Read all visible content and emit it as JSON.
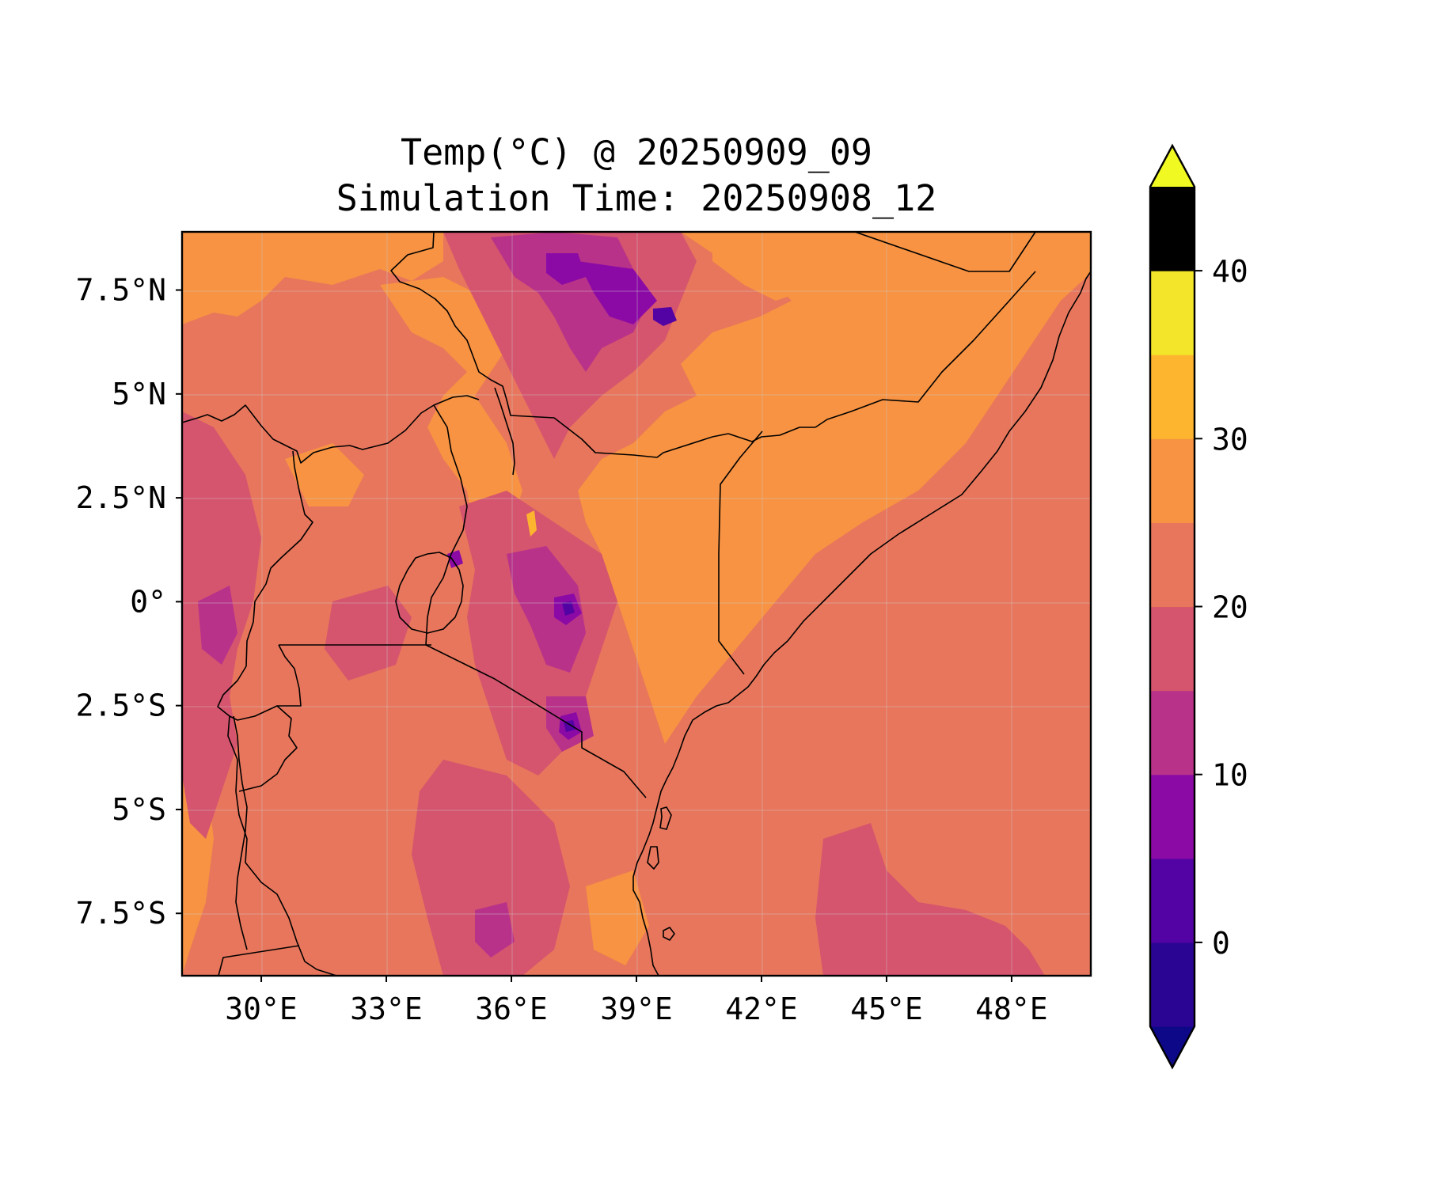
{
  "chart_data": {
    "type": "heatmap",
    "title": "Temp(°C) @ 20250909_09",
    "subtitle": "Simulation Time: 20250908_12",
    "variable": "Temp(°C)",
    "valid_time": "20250909_09",
    "simulation_time": "20250908_12",
    "x_ticks": [
      "30°E",
      "33°E",
      "36°E",
      "39°E",
      "42°E",
      "45°E",
      "48°E"
    ],
    "x_tick_values": [
      30,
      33,
      36,
      39,
      42,
      45,
      48
    ],
    "y_ticks": [
      "7.5°N",
      "5°N",
      "2.5°N",
      "0°",
      "2.5°S",
      "5°S",
      "7.5°S"
    ],
    "y_tick_values": [
      7.5,
      5,
      2.5,
      0,
      -2.5,
      -5,
      -7.5
    ],
    "lon_range": [
      28.1,
      49.9
    ],
    "lat_range": [
      -9.0,
      8.9
    ],
    "grid": true,
    "colorbar": {
      "orientation": "vertical",
      "placement": "right",
      "extend": "both",
      "levels": [
        -5,
        0,
        5,
        10,
        15,
        20,
        25,
        30,
        35,
        40,
        45
      ],
      "tick_labels": [
        "0",
        "10",
        "20",
        "30",
        "40"
      ],
      "tick_values": [
        0,
        10,
        20,
        30,
        40
      ],
      "under_color": "#0d0887",
      "over_color": "#f0f921",
      "colors": [
        "#2a0593",
        "#5302a3",
        "#8b0aa5",
        "#b83289",
        "#d5546e",
        "#e8765c",
        "#f79342",
        "#fdb42f",
        "#f3e52a"
      ]
    },
    "features": [
      "country borders",
      "coastlines"
    ],
    "colors": {
      "sea_background": "#e8765c",
      "plateau_hot": "#f79342",
      "highland": "#d5546e",
      "cool_peak": "#b83289",
      "cold_peak": "#8b0aa5",
      "coldest_peak": "#5302a3",
      "hottest_spot": "#fdb42f"
    }
  }
}
